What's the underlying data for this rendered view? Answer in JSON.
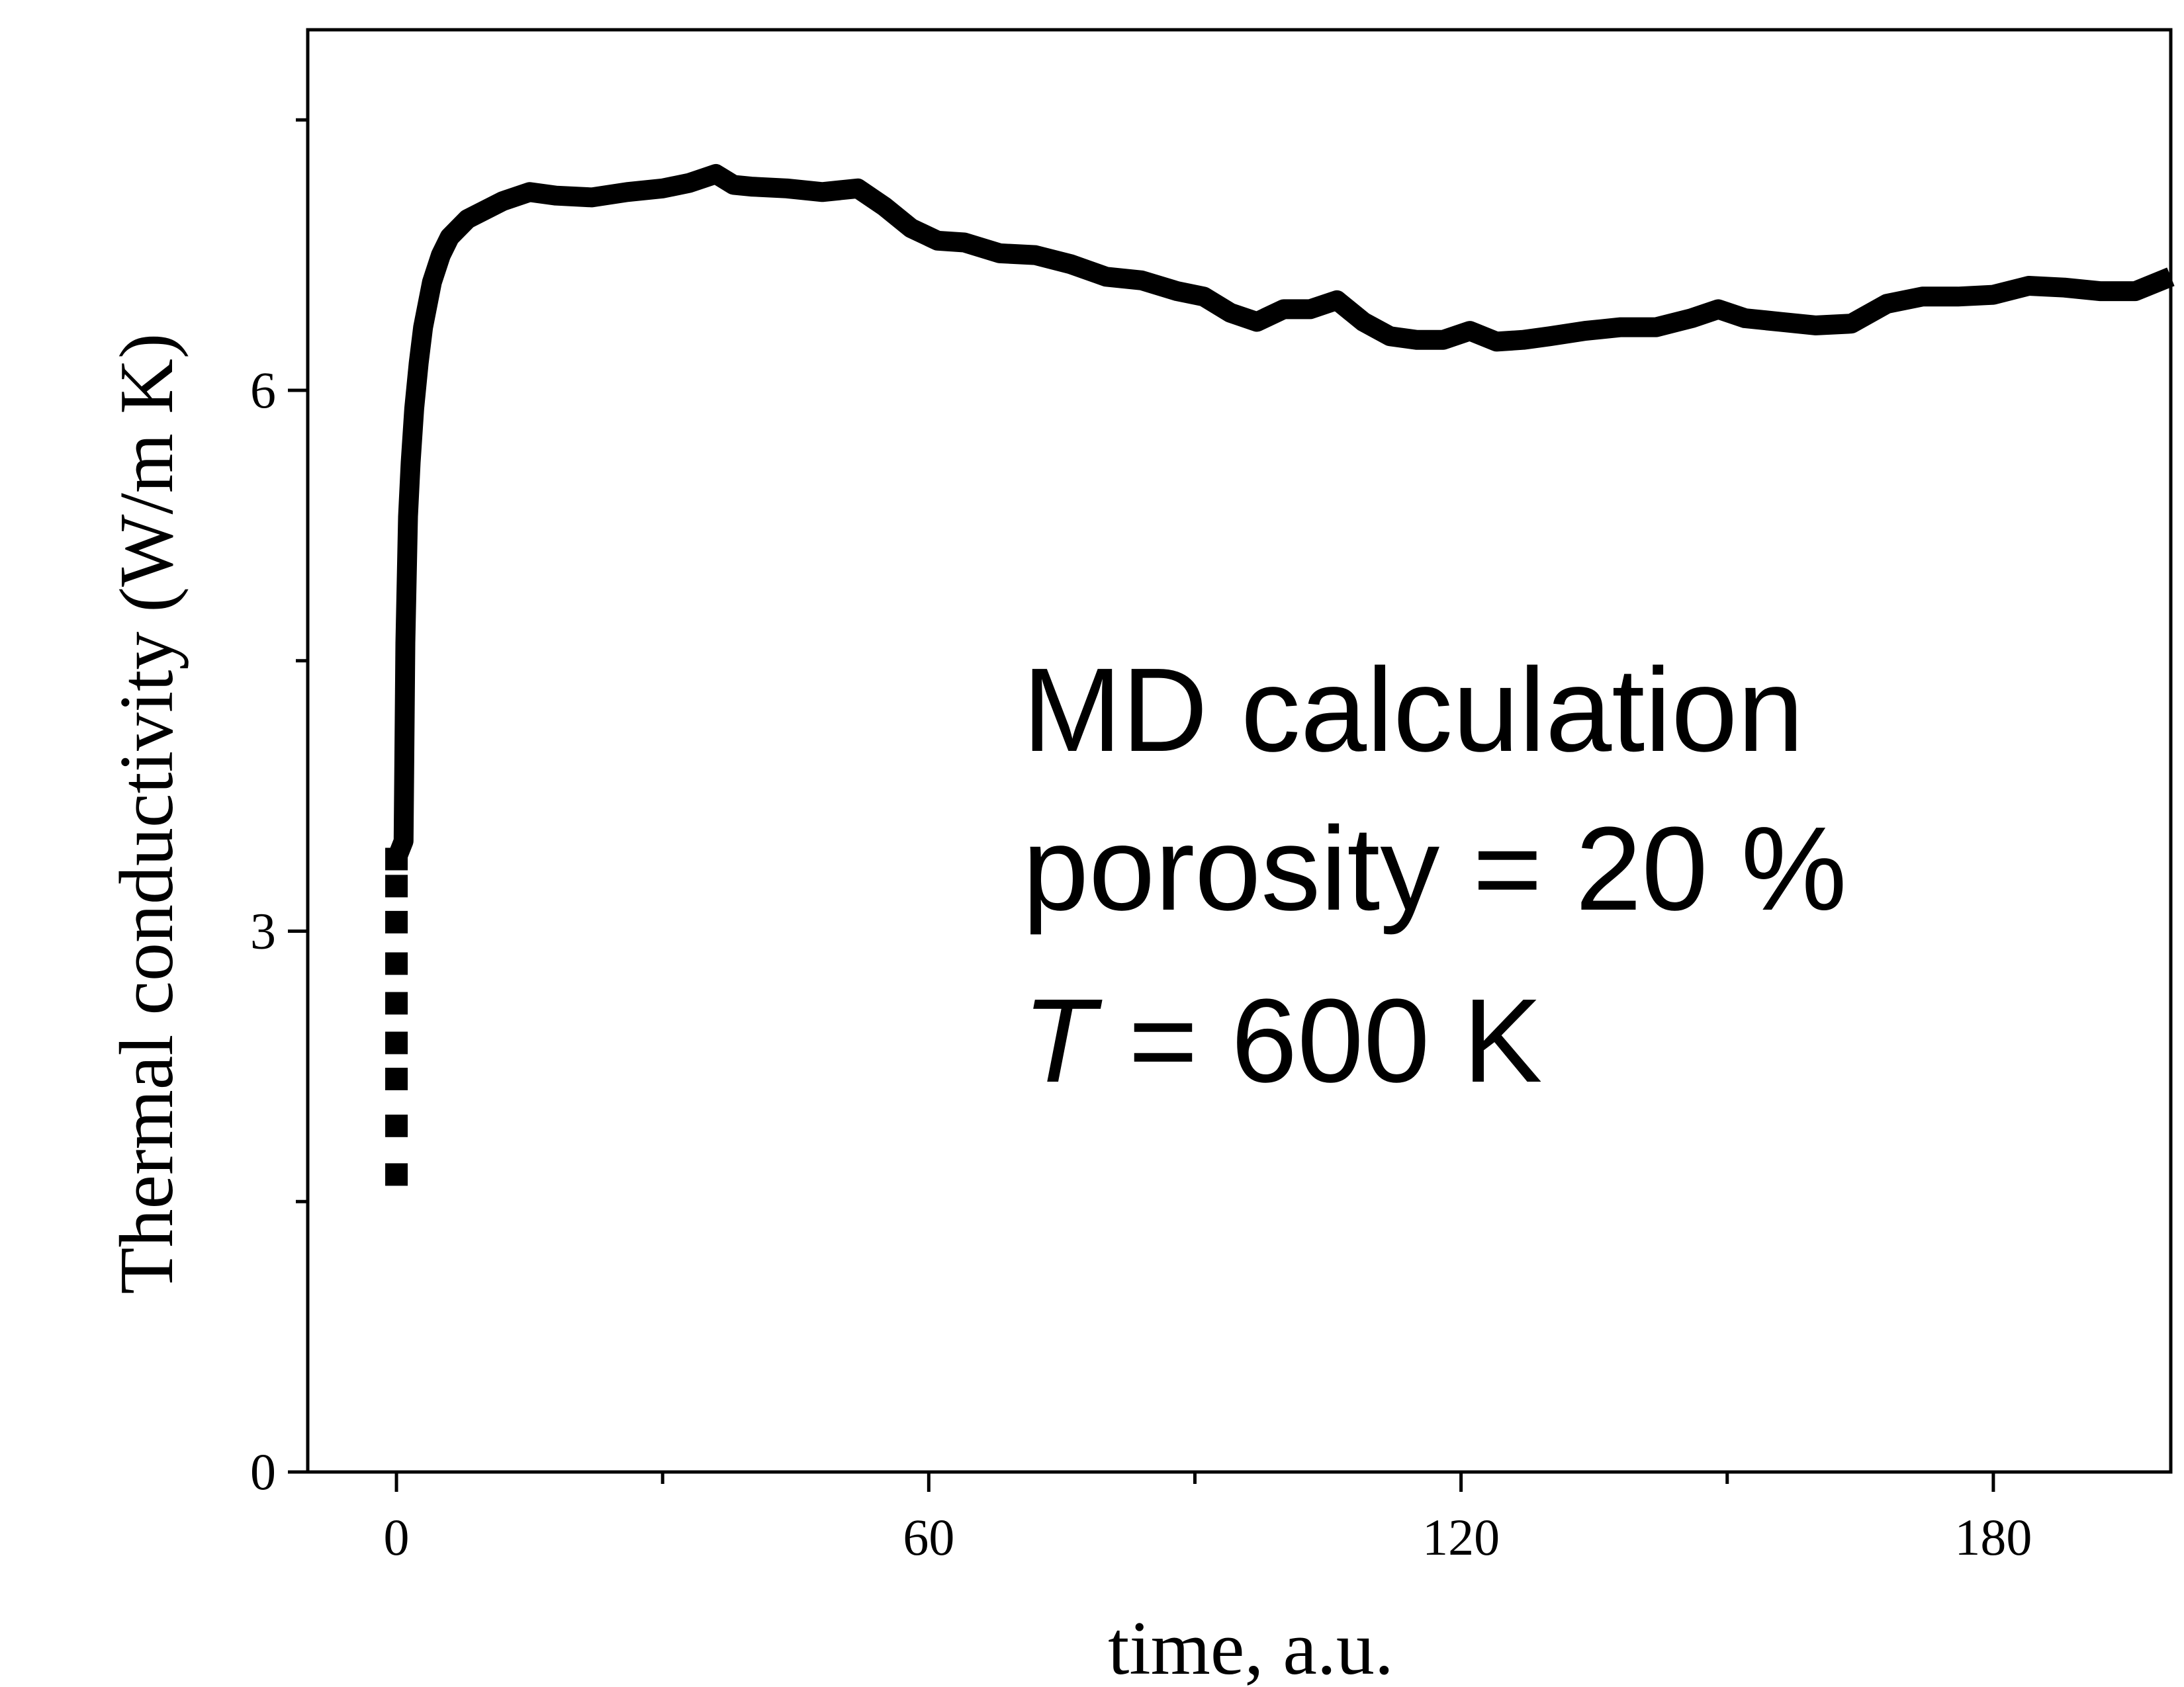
{
  "chart_data": {
    "type": "line",
    "title": "",
    "xlabel": "time, a.u.",
    "ylabel": "Thermal conductivity (W/m K)",
    "xlim": [
      -10,
      200
    ],
    "ylim": [
      0,
      8
    ],
    "x_ticks": [
      0,
      60,
      120,
      180
    ],
    "y_ticks": [
      0,
      3,
      6
    ],
    "x_tick_labels": [
      "0",
      "60",
      "120",
      "180"
    ],
    "y_tick_labels": [
      "0",
      "3",
      "6"
    ],
    "grid": false,
    "annotations": {
      "line1": "MD calculation",
      "line2": "porosity = 20 %",
      "line3_symbol": "T",
      "line3_rest": " = 600 K"
    },
    "series": [
      {
        "color": "#000000",
        "sparse_points": {
          "x": [
            0,
            0,
            0,
            0,
            0,
            0,
            0,
            0,
            0
          ],
          "y": [
            1.65,
            1.92,
            2.18,
            2.38,
            2.6,
            2.82,
            3.05,
            3.25,
            3.4
          ]
        },
        "x": [
          0.8,
          1.0,
          1.3,
          1.6,
          2.0,
          2.5,
          3.0,
          4.0,
          5.0,
          6.0,
          8.0,
          10.0,
          12.0,
          15.0,
          18.0,
          22.0,
          26.0,
          30.0,
          33.0,
          36.0,
          38.0,
          40.0,
          44.0,
          48.0,
          52.0,
          55.0,
          58.0,
          61.0,
          64.0,
          68.0,
          72.0,
          76.0,
          80.0,
          84.0,
          88.0,
          91.0,
          94.0,
          97.0,
          100.0,
          103.0,
          106.0,
          109.0,
          112.0,
          115.0,
          118.0,
          121.0,
          124.0,
          127.0,
          130.0,
          134.0,
          138.0,
          142.0,
          146.0,
          149.0,
          152.0,
          156.0,
          160.0,
          164.0,
          168.0,
          172.0,
          176.0,
          180.0,
          184.0,
          188.0,
          192.0,
          196.0,
          200.0
        ],
        "y": [
          3.5,
          4.6,
          5.3,
          5.6,
          5.9,
          6.15,
          6.35,
          6.6,
          6.75,
          6.85,
          6.95,
          7.0,
          7.05,
          7.1,
          7.08,
          7.07,
          7.1,
          7.12,
          7.15,
          7.2,
          7.14,
          7.13,
          7.12,
          7.1,
          7.12,
          7.02,
          6.9,
          6.83,
          6.82,
          6.76,
          6.75,
          6.7,
          6.63,
          6.61,
          6.55,
          6.52,
          6.43,
          6.38,
          6.45,
          6.45,
          6.5,
          6.38,
          6.3,
          6.28,
          6.28,
          6.33,
          6.27,
          6.28,
          6.3,
          6.33,
          6.35,
          6.35,
          6.4,
          6.45,
          6.4,
          6.38,
          6.36,
          6.37,
          6.48,
          6.52,
          6.52,
          6.53,
          6.58,
          6.57,
          6.55,
          6.55,
          6.63
        ]
      }
    ]
  }
}
